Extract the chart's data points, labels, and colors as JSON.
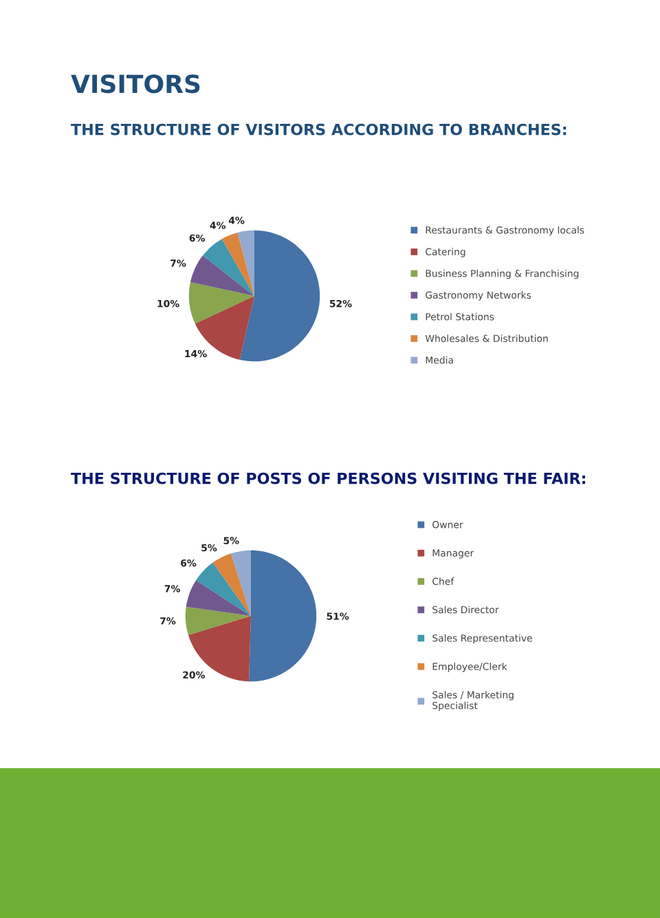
{
  "chart_data": [
    {
      "type": "pie",
      "title": "VISITORS",
      "subtitle": "THE STRUCTURE OF VISITORS ACCORDING TO BRANCHES:",
      "legend": "right",
      "categories": [
        "Restaurants & Gastronomy locals",
        "Catering",
        "Business Planning & Franchising",
        "Gastronomy Networks",
        "Petrol Stations",
        "Wholesales & Distribution",
        "Media"
      ],
      "values": [
        52,
        14,
        10,
        7,
        6,
        4,
        4
      ],
      "value_labels": [
        "52%",
        "14%",
        "10%",
        "7%",
        "6%",
        "4%",
        "4%"
      ],
      "colors": [
        "#4572a7",
        "#aa4643",
        "#89a54e",
        "#71588f",
        "#4198af",
        "#db843d",
        "#93a9cf"
      ]
    },
    {
      "type": "pie",
      "title": "THE STRUCTURE OF POSTS OF PERSONS VISITING THE FAIR:",
      "legend": "right",
      "categories": [
        "Owner",
        "Manager",
        "Chef",
        "Sales Director",
        "Sales Representative",
        "Employee/Clerk",
        "Sales / Marketing\nSpecialist"
      ],
      "values": [
        51,
        20,
        7,
        7,
        6,
        5,
        5
      ],
      "value_labels": [
        "51%",
        "20%",
        "7%",
        "7%",
        "6%",
        "5%",
        "5%"
      ],
      "colors": [
        "#4572a7",
        "#aa4643",
        "#89a54e",
        "#71588f",
        "#4198af",
        "#db843d",
        "#93a9cf"
      ]
    }
  ]
}
